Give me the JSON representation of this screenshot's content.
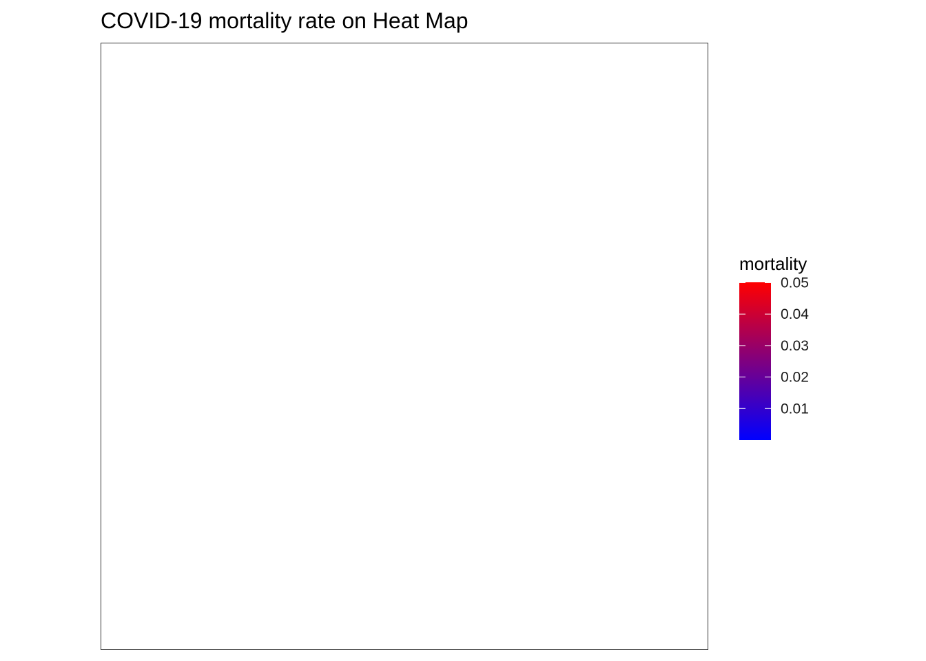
{
  "chart_data": {
    "type": "heatmap",
    "title": "COVID-19 mortality rate on Heat Map",
    "xlabel": "",
    "ylabel": "",
    "grid": false,
    "values": [],
    "legend": {
      "title": "mortality",
      "placement": "right",
      "range": [
        0.0,
        0.05
      ],
      "breaks": [
        0.01,
        0.02,
        0.03,
        0.04,
        0.05
      ],
      "break_labels": [
        "0.01",
        "0.02",
        "0.03",
        "0.04",
        "0.05"
      ],
      "low_color": "#0000FF",
      "high_color": "#FF0000"
    }
  }
}
